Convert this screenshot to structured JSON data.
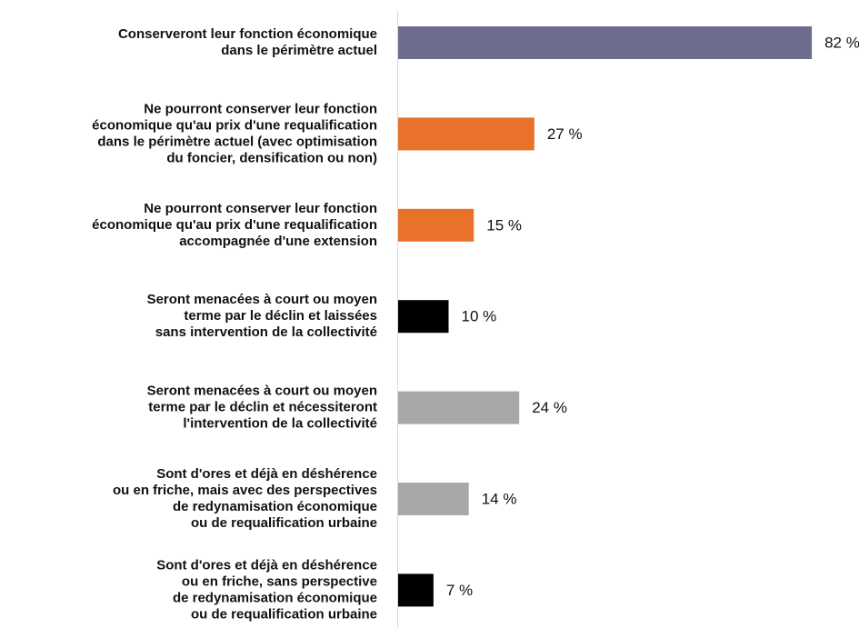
{
  "chart_data": {
    "type": "bar",
    "orientation": "horizontal",
    "categories": [
      [
        "Conserveront leur fonction économique",
        "dans le périmètre actuel"
      ],
      [
        "Ne pourront conserver leur fonction",
        "économique qu'au prix d'une requalification",
        "dans le périmètre actuel (avec optimisation",
        "du foncier, densification ou non)"
      ],
      [
        "Ne pourront conserver leur fonction",
        "économique qu'au prix d'une requalification",
        "accompagnée d'une extension"
      ],
      [
        "Seront menacées à court ou moyen",
        "terme par le déclin et laissées",
        "sans intervention de la collectivité"
      ],
      [
        "Seront menacées à court ou moyen",
        "terme par le déclin et nécessiteront",
        "l'intervention de la collectivité"
      ],
      [
        "Sont d'ores et déjà en déshérence",
        "ou en friche, mais avec des perspectives",
        "de redynamisation économique",
        "ou de requalification urbaine"
      ],
      [
        "Sont d'ores et déjà en déshérence",
        "ou en friche, sans perspective",
        "de redynamisation économique",
        "ou de requalification urbaine"
      ]
    ],
    "values": [
      82,
      27,
      15,
      10,
      24,
      14,
      7
    ],
    "value_labels": [
      "82 %",
      "27 %",
      "15 %",
      "10 %",
      "24 %",
      "14 %",
      "7 %"
    ],
    "colors": [
      "#6e6d8e",
      "#e8722a",
      "#e8722a",
      "#000000",
      "#a8a8ab",
      "#a8a8ab",
      "#000000"
    ],
    "xlim": [
      0,
      100
    ]
  }
}
